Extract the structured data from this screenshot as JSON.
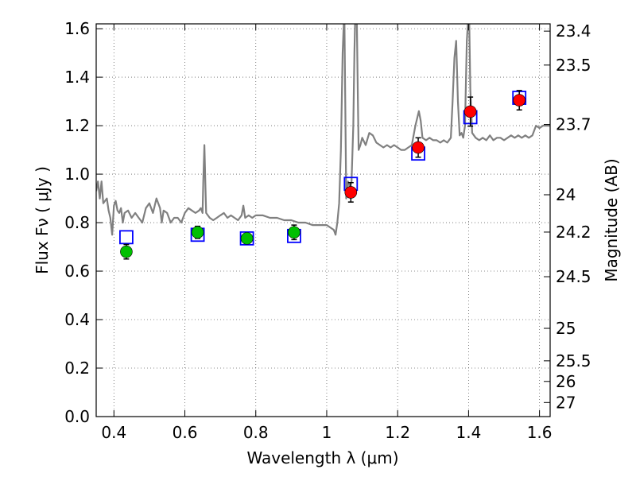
{
  "chart_data": {
    "type": "scatter",
    "title": "",
    "xlabel": "Wavelength  λ (μm)",
    "ylabel": "Flux  Fν  ( μJy )",
    "y2label": "Magnitude (AB)",
    "xlim": [
      0.35,
      1.63
    ],
    "ylim": [
      0.0,
      1.62
    ],
    "grid": true,
    "x_ticks": [
      0.4,
      0.6,
      0.8,
      1.0,
      1.2,
      1.4,
      1.6
    ],
    "x_tick_labels": [
      "0.4",
      "0.6",
      "0.8",
      "1",
      "1.2",
      "1.4",
      "1.6"
    ],
    "y_ticks": [
      0.0,
      0.2,
      0.4,
      0.6,
      0.8,
      1.0,
      1.2,
      1.4,
      1.6
    ],
    "y_tick_labels": [
      "0.0",
      "0.2",
      "0.4",
      "0.6",
      "0.8",
      "1.0",
      "1.2",
      "1.4",
      "1.6"
    ],
    "right_ticks": [
      {
        "label": "23.4",
        "flux": 1.59
      },
      {
        "label": "23.5",
        "flux": 1.45
      },
      {
        "label": "23.7",
        "flux": 1.205
      },
      {
        "label": "24",
        "flux": 0.915
      },
      {
        "label": "24.2",
        "flux": 0.761
      },
      {
        "label": "24.5",
        "flux": 0.577
      },
      {
        "label": "25",
        "flux": 0.364
      },
      {
        "label": "25.5",
        "flux": 0.23
      },
      {
        "label": "26",
        "flux": 0.145
      },
      {
        "label": "27",
        "flux": 0.058
      }
    ],
    "series": [
      {
        "kind": "sed_model",
        "color": "#808080",
        "points": [
          [
            0.35,
            0.93
          ],
          [
            0.355,
            0.97
          ],
          [
            0.36,
            0.9
          ],
          [
            0.365,
            0.97
          ],
          [
            0.37,
            0.88
          ],
          [
            0.38,
            0.9
          ],
          [
            0.385,
            0.85
          ],
          [
            0.39,
            0.82
          ],
          [
            0.395,
            0.75
          ],
          [
            0.4,
            0.87
          ],
          [
            0.405,
            0.89
          ],
          [
            0.41,
            0.85
          ],
          [
            0.415,
            0.84
          ],
          [
            0.42,
            0.86
          ],
          [
            0.425,
            0.8
          ],
          [
            0.43,
            0.84
          ],
          [
            0.44,
            0.85
          ],
          [
            0.45,
            0.82
          ],
          [
            0.46,
            0.84
          ],
          [
            0.47,
            0.82
          ],
          [
            0.48,
            0.8
          ],
          [
            0.49,
            0.86
          ],
          [
            0.5,
            0.88
          ],
          [
            0.51,
            0.84
          ],
          [
            0.52,
            0.9
          ],
          [
            0.53,
            0.86
          ],
          [
            0.535,
            0.8
          ],
          [
            0.54,
            0.85
          ],
          [
            0.55,
            0.84
          ],
          [
            0.56,
            0.8
          ],
          [
            0.57,
            0.82
          ],
          [
            0.58,
            0.82
          ],
          [
            0.59,
            0.8
          ],
          [
            0.6,
            0.84
          ],
          [
            0.61,
            0.86
          ],
          [
            0.62,
            0.85
          ],
          [
            0.63,
            0.84
          ],
          [
            0.64,
            0.85
          ],
          [
            0.645,
            0.86
          ],
          [
            0.65,
            0.84
          ],
          [
            0.652,
            0.97
          ],
          [
            0.655,
            1.12
          ],
          [
            0.658,
            0.95
          ],
          [
            0.66,
            0.84
          ],
          [
            0.67,
            0.82
          ],
          [
            0.68,
            0.81
          ],
          [
            0.69,
            0.82
          ],
          [
            0.7,
            0.83
          ],
          [
            0.71,
            0.84
          ],
          [
            0.72,
            0.82
          ],
          [
            0.73,
            0.83
          ],
          [
            0.74,
            0.82
          ],
          [
            0.75,
            0.81
          ],
          [
            0.76,
            0.83
          ],
          [
            0.765,
            0.87
          ],
          [
            0.77,
            0.82
          ],
          [
            0.78,
            0.83
          ],
          [
            0.79,
            0.82
          ],
          [
            0.8,
            0.83
          ],
          [
            0.82,
            0.83
          ],
          [
            0.84,
            0.82
          ],
          [
            0.86,
            0.82
          ],
          [
            0.88,
            0.81
          ],
          [
            0.9,
            0.81
          ],
          [
            0.92,
            0.8
          ],
          [
            0.94,
            0.8
          ],
          [
            0.96,
            0.79
          ],
          [
            0.98,
            0.79
          ],
          [
            1.0,
            0.79
          ],
          [
            1.01,
            0.78
          ],
          [
            1.02,
            0.77
          ],
          [
            1.025,
            0.75
          ],
          [
            1.03,
            0.8
          ],
          [
            1.035,
            0.88
          ],
          [
            1.04,
            1.1
          ],
          [
            1.045,
            1.5
          ],
          [
            1.048,
            1.62
          ],
          [
            1.05,
            1.62
          ],
          [
            1.055,
            0.9
          ],
          [
            1.06,
            0.97
          ],
          [
            1.065,
            0.95
          ],
          [
            1.07,
            0.97
          ],
          [
            1.075,
            1.2
          ],
          [
            1.078,
            1.5
          ],
          [
            1.08,
            1.62
          ],
          [
            1.085,
            1.62
          ],
          [
            1.088,
            1.3
          ],
          [
            1.09,
            1.1
          ],
          [
            1.095,
            1.12
          ],
          [
            1.1,
            1.15
          ],
          [
            1.11,
            1.12
          ],
          [
            1.12,
            1.17
          ],
          [
            1.13,
            1.16
          ],
          [
            1.14,
            1.13
          ],
          [
            1.15,
            1.12
          ],
          [
            1.16,
            1.11
          ],
          [
            1.17,
            1.12
          ],
          [
            1.18,
            1.11
          ],
          [
            1.19,
            1.12
          ],
          [
            1.2,
            1.11
          ],
          [
            1.21,
            1.1
          ],
          [
            1.22,
            1.1
          ],
          [
            1.23,
            1.11
          ],
          [
            1.24,
            1.12
          ],
          [
            1.25,
            1.2
          ],
          [
            1.26,
            1.26
          ],
          [
            1.265,
            1.22
          ],
          [
            1.27,
            1.15
          ],
          [
            1.28,
            1.14
          ],
          [
            1.29,
            1.15
          ],
          [
            1.3,
            1.14
          ],
          [
            1.31,
            1.14
          ],
          [
            1.32,
            1.13
          ],
          [
            1.33,
            1.14
          ],
          [
            1.34,
            1.13
          ],
          [
            1.35,
            1.15
          ],
          [
            1.355,
            1.3
          ],
          [
            1.36,
            1.48
          ],
          [
            1.365,
            1.55
          ],
          [
            1.37,
            1.3
          ],
          [
            1.375,
            1.16
          ],
          [
            1.38,
            1.17
          ],
          [
            1.385,
            1.15
          ],
          [
            1.39,
            1.2
          ],
          [
            1.395,
            1.55
          ],
          [
            1.398,
            1.62
          ],
          [
            1.402,
            1.62
          ],
          [
            1.405,
            1.35
          ],
          [
            1.41,
            1.17
          ],
          [
            1.42,
            1.15
          ],
          [
            1.43,
            1.14
          ],
          [
            1.44,
            1.15
          ],
          [
            1.45,
            1.14
          ],
          [
            1.46,
            1.16
          ],
          [
            1.47,
            1.14
          ],
          [
            1.48,
            1.15
          ],
          [
            1.49,
            1.15
          ],
          [
            1.5,
            1.14
          ],
          [
            1.51,
            1.15
          ],
          [
            1.52,
            1.16
          ],
          [
            1.53,
            1.15
          ],
          [
            1.54,
            1.16
          ],
          [
            1.55,
            1.15
          ],
          [
            1.56,
            1.16
          ],
          [
            1.57,
            1.15
          ],
          [
            1.58,
            1.16
          ],
          [
            1.59,
            1.2
          ],
          [
            1.6,
            1.19
          ],
          [
            1.61,
            1.2
          ],
          [
            1.63,
            1.2
          ]
        ]
      },
      {
        "kind": "model_photometry",
        "marker": "open-square",
        "color": "#0000ff",
        "points": [
          [
            0.435,
            0.74
          ],
          [
            0.636,
            0.75
          ],
          [
            0.775,
            0.735
          ],
          [
            0.908,
            0.745
          ],
          [
            1.068,
            0.96
          ],
          [
            1.258,
            1.085
          ],
          [
            1.405,
            1.235
          ],
          [
            1.543,
            1.315
          ]
        ]
      },
      {
        "kind": "observed_optical",
        "marker": "filled-circle",
        "color": "#00c000",
        "points": [
          [
            0.435,
            0.68,
            0.03
          ],
          [
            0.636,
            0.76,
            0.025
          ],
          [
            0.775,
            0.735,
            0.02
          ],
          [
            0.908,
            0.76,
            0.03
          ]
        ]
      },
      {
        "kind": "observed_nir",
        "marker": "filled-circle",
        "color": "#ff0000",
        "points": [
          [
            1.068,
            0.925,
            0.04
          ],
          [
            1.258,
            1.11,
            0.04
          ],
          [
            1.405,
            1.258,
            0.06
          ],
          [
            1.543,
            1.305,
            0.04
          ]
        ]
      }
    ]
  }
}
